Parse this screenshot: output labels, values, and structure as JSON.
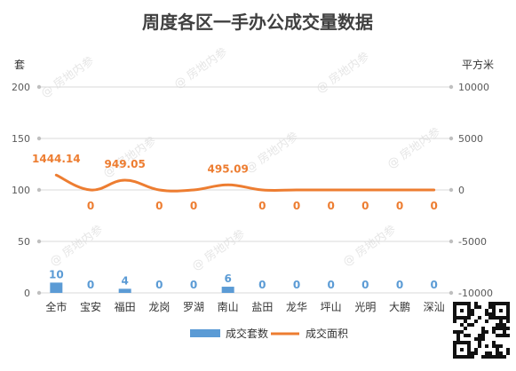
{
  "chart_data": {
    "type": "bar+line",
    "title": "周度各区一手办公成交量数据",
    "categories": [
      "全市",
      "宝安",
      "福田",
      "龙岗",
      "罗湖",
      "南山",
      "盐田",
      "龙华",
      "坪山",
      "光明",
      "大鹏",
      "深汕"
    ],
    "series": [
      {
        "name": "成交套数",
        "type": "bar",
        "axis": "left",
        "color": "#5b9bd5",
        "values": [
          10,
          0,
          4,
          0,
          0,
          6,
          0,
          0,
          0,
          0,
          0,
          0
        ],
        "labels": [
          "10",
          "0",
          "4",
          "0",
          "0",
          "6",
          "0",
          "0",
          "0",
          "0",
          "0",
          "0"
        ]
      },
      {
        "name": "成交面积",
        "type": "line",
        "axis": "right",
        "color": "#ed7d31",
        "values": [
          1444.14,
          0,
          949.05,
          0,
          0,
          495.09,
          0,
          0,
          0,
          0,
          0,
          0
        ],
        "labels": [
          "1444.14",
          "0",
          "949.05",
          "0",
          "0",
          "495.09",
          "0",
          "0",
          "0",
          "0",
          "0",
          "0"
        ]
      }
    ],
    "y_left": {
      "label": "套",
      "min": 0,
      "max": 200,
      "ticks": [
        0,
        50,
        100,
        150,
        200
      ]
    },
    "y_right": {
      "label": "平方米",
      "min": -10000,
      "max": 10000,
      "ticks": [
        -10000,
        -5000,
        0,
        5000,
        10000
      ]
    },
    "grid": true,
    "legend_position": "bottom"
  },
  "watermark": "@ 房地内参"
}
